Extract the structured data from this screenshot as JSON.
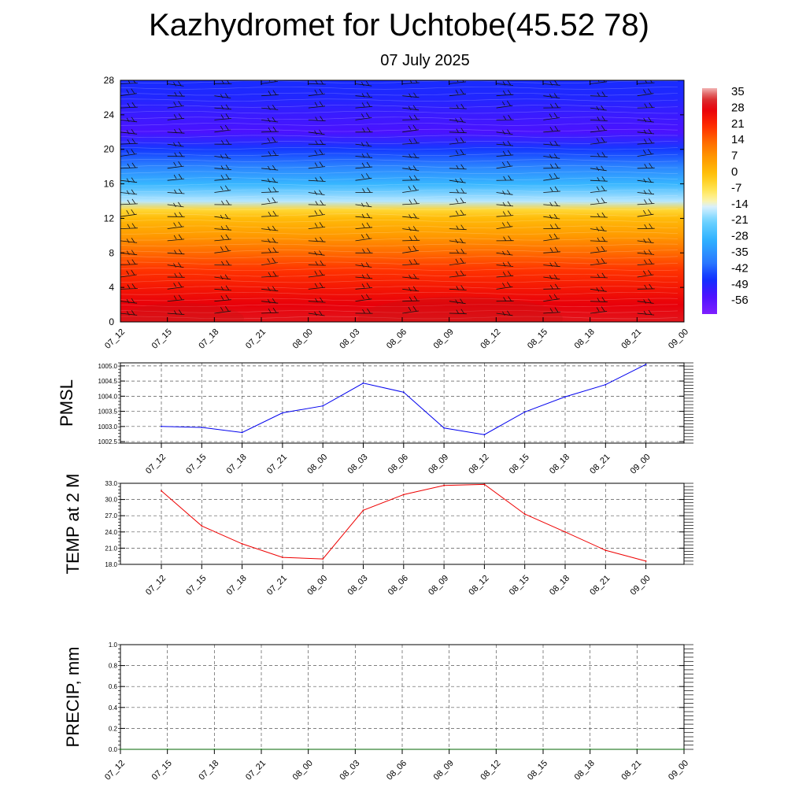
{
  "title": "Kazhydromet for Uchtobe(45.52 78)",
  "subtitle": "07 July 2025",
  "time_labels": [
    "07_12",
    "07_15",
    "07_18",
    "07_21",
    "08_00",
    "08_03",
    "08_06",
    "08_09",
    "08_12",
    "08_15",
    "08_18",
    "08_21",
    "09_00"
  ],
  "colorbar": {
    "labels": [
      "35",
      "28",
      "21",
      "14",
      "7",
      "0",
      "-7",
      "-14",
      "-21",
      "-28",
      "-35",
      "-42",
      "-49",
      "-56"
    ]
  },
  "chart_data": [
    {
      "type": "heatmap",
      "title": "",
      "xlabel": "",
      "ylabel": "",
      "x": [
        "07_12",
        "07_15",
        "07_18",
        "07_21",
        "08_00",
        "08_03",
        "08_06",
        "08_09",
        "08_12",
        "08_15",
        "08_18",
        "08_21",
        "09_00"
      ],
      "yticks": [
        "0",
        "4",
        "8",
        "12",
        "16",
        "20",
        "24",
        "28"
      ],
      "ylim": [
        0,
        28
      ],
      "zlim": [
        -56,
        35
      ],
      "temperature_profile": [
        {
          "height": 0,
          "temp": 30
        },
        {
          "height": 2,
          "temp": 28
        },
        {
          "height": 4,
          "temp": 24
        },
        {
          "height": 6,
          "temp": 20
        },
        {
          "height": 8,
          "temp": 14
        },
        {
          "height": 10,
          "temp": 7
        },
        {
          "height": 12,
          "temp": 1
        },
        {
          "height": 13,
          "temp": -4
        },
        {
          "height": 14,
          "temp": -16
        },
        {
          "height": 16,
          "temp": -27
        },
        {
          "height": 18,
          "temp": -36
        },
        {
          "height": 20,
          "temp": -44
        },
        {
          "height": 22,
          "temp": -52
        },
        {
          "height": 24,
          "temp": -50
        },
        {
          "height": 26,
          "temp": -47
        },
        {
          "height": 28,
          "temp": -46
        }
      ],
      "wind_barbs": true
    },
    {
      "type": "line",
      "ylabel": "PMSL",
      "categories": [
        "07_12",
        "07_15",
        "07_18",
        "07_21",
        "08_00",
        "08_03",
        "08_06",
        "08_09",
        "08_12",
        "08_15",
        "08_18",
        "08_21",
        "09_00"
      ],
      "yticks": [
        "1002.5",
        "1003.0",
        "1003.5",
        "1004.0",
        "1004.5",
        "1005.0"
      ],
      "ylim": [
        1002.45,
        1005.1
      ],
      "color": "#0000ee",
      "values": [
        1003.0,
        1002.97,
        1002.8,
        1003.45,
        1003.68,
        1004.43,
        1004.13,
        1002.95,
        1002.73,
        1003.48,
        1003.98,
        1004.38,
        1005.05
      ]
    },
    {
      "type": "line",
      "ylabel": "TEMP at 2 M",
      "categories": [
        "07_12",
        "07_15",
        "07_18",
        "07_21",
        "08_00",
        "08_03",
        "08_06",
        "08_09",
        "08_12",
        "08_15",
        "08_18",
        "08_21",
        "09_00"
      ],
      "yticks": [
        "18.0",
        "21.0",
        "24.0",
        "27.0",
        "30.0",
        "33.0"
      ],
      "ylim": [
        18,
        33
      ],
      "color": "#ee0000",
      "values": [
        31.6,
        25.1,
        21.8,
        19.3,
        19.0,
        28.0,
        30.9,
        32.6,
        32.8,
        27.3,
        24.0,
        20.6,
        18.6
      ]
    },
    {
      "type": "line",
      "ylabel": "PRECIP, mm",
      "categories": [
        "07_12",
        "07_15",
        "07_18",
        "07_21",
        "08_00",
        "08_03",
        "08_06",
        "08_09",
        "08_12",
        "08_15",
        "08_18",
        "08_21",
        "09_00"
      ],
      "yticks": [
        "0.0",
        "0.2",
        "0.4",
        "0.6",
        "0.8",
        "1.0"
      ],
      "ylim": [
        0,
        1
      ],
      "color": "#006600",
      "values": [
        0,
        0,
        0,
        0,
        0,
        0,
        0,
        0,
        0,
        0,
        0,
        0,
        0
      ]
    }
  ]
}
